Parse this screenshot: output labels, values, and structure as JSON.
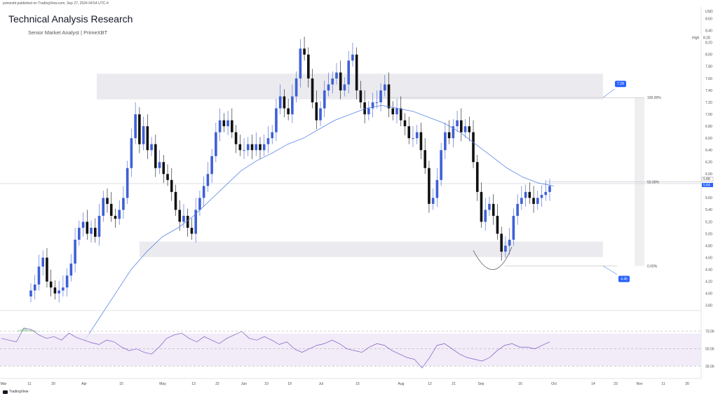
{
  "publish_line": "primexbt published on TradingView.com, Sep 27, 2024 04:54 UTC-4",
  "title": "Technical Analysis Research",
  "subtitle": "Senior Market Analyst | PrimeXBT",
  "brand": "TradingView",
  "chart_data": {
    "type": "candlestick",
    "currency_label": "USD",
    "price_axis_ticks": [
      "8.60",
      "8.40",
      "8.20",
      "8.00",
      "7.80",
      "7.60",
      "7.40",
      "7.20",
      "7.00",
      "6.80",
      "6.60",
      "6.40",
      "6.20",
      "6.00",
      "5.80",
      "5.60",
      "5.40",
      "5.20",
      "5.00",
      "4.80",
      "4.60",
      "4.40",
      "4.20",
      "4.00",
      "3.80"
    ],
    "ylim": [
      3.75,
      8.75
    ],
    "time_axis_labels": [
      "Mar",
      "11",
      "20",
      "Apr",
      "15",
      "May",
      "13",
      "22",
      "Jun",
      "10",
      "19",
      "Jul",
      "15",
      "Aug",
      "12",
      "21",
      "Sep",
      "16",
      "Oct",
      "14",
      "23",
      "Nov",
      "11",
      "20"
    ],
    "high_label": "High",
    "high_value": "8.28",
    "price_badges": [
      "5.88",
      "5.84"
    ],
    "fib_labels": [
      "100.00%",
      "50.00%",
      "0.00%"
    ],
    "target_labels": [
      "7.28",
      "4.46"
    ],
    "resistance_zone": [
      7.25,
      7.68
    ],
    "support_zone": [
      4.61,
      4.87
    ],
    "current_price": 5.84,
    "closes": [
      4.05,
      4.15,
      4.45,
      4.6,
      4.2,
      4.1,
      4.0,
      4.05,
      4.1,
      4.3,
      4.5,
      4.9,
      5.1,
      5.2,
      5.0,
      5.1,
      4.95,
      5.3,
      5.6,
      5.5,
      5.3,
      5.25,
      5.4,
      5.6,
      6.1,
      6.6,
      7.0,
      6.5,
      6.8,
      6.4,
      6.5,
      6.1,
      6.2,
      6.0,
      5.9,
      5.7,
      5.4,
      5.2,
      5.3,
      5.1,
      5.0,
      5.4,
      5.6,
      5.8,
      6.0,
      6.3,
      6.7,
      6.9,
      6.8,
      6.9,
      6.7,
      6.5,
      6.4,
      6.4,
      6.5,
      6.4,
      6.5,
      6.4,
      6.5,
      6.6,
      6.7,
      7.1,
      7.3,
      7.1,
      7.0,
      7.3,
      7.6,
      8.1,
      8.0,
      7.6,
      7.2,
      6.9,
      7.1,
      7.4,
      7.5,
      7.6,
      7.7,
      7.4,
      7.5,
      7.9,
      8.0,
      7.4,
      7.2,
      7.0,
      7.1,
      7.2,
      7.2,
      7.4,
      7.5,
      7.1,
      7.0,
      7.1,
      6.9,
      6.8,
      6.6,
      6.6,
      6.7,
      6.4,
      6.1,
      5.5,
      5.6,
      5.9,
      6.4,
      6.7,
      6.6,
      6.8,
      6.9,
      6.7,
      6.8,
      6.7,
      6.2,
      5.7,
      5.2,
      5.4,
      5.5,
      5.3,
      5.0,
      4.7,
      4.8,
      4.9,
      5.3,
      5.5,
      5.6,
      5.7,
      5.6,
      5.5,
      5.6,
      5.65,
      5.7,
      5.8
    ],
    "ma_series": [
      3.2,
      3.6,
      4.0,
      4.4,
      4.7,
      4.95,
      5.1,
      5.3,
      5.55,
      5.8,
      6.05,
      6.22,
      6.35,
      6.5,
      6.6,
      6.75,
      6.9,
      7.0,
      7.1,
      7.15,
      7.1,
      7.05,
      6.95,
      6.85,
      6.7,
      6.5,
      6.3,
      6.1,
      5.95,
      5.85,
      5.8
    ],
    "rsi_levels": [
      70,
      50,
      30
    ],
    "rsi_series": [
      62,
      60,
      58,
      74,
      72,
      66,
      62,
      64,
      60,
      68,
      63,
      60,
      57,
      55,
      60,
      58,
      52,
      48,
      50,
      46,
      44,
      52,
      62,
      66,
      68,
      62,
      58,
      64,
      60,
      56,
      62,
      66,
      70,
      62,
      60,
      64,
      60,
      55,
      58,
      50,
      46,
      50,
      54,
      56,
      60,
      56,
      50,
      48,
      46,
      52,
      56,
      54,
      48,
      44,
      40,
      38,
      28,
      40,
      54,
      56,
      50,
      44,
      40,
      38,
      36,
      40,
      48,
      54,
      56,
      52,
      52,
      50,
      54,
      58
    ]
  }
}
